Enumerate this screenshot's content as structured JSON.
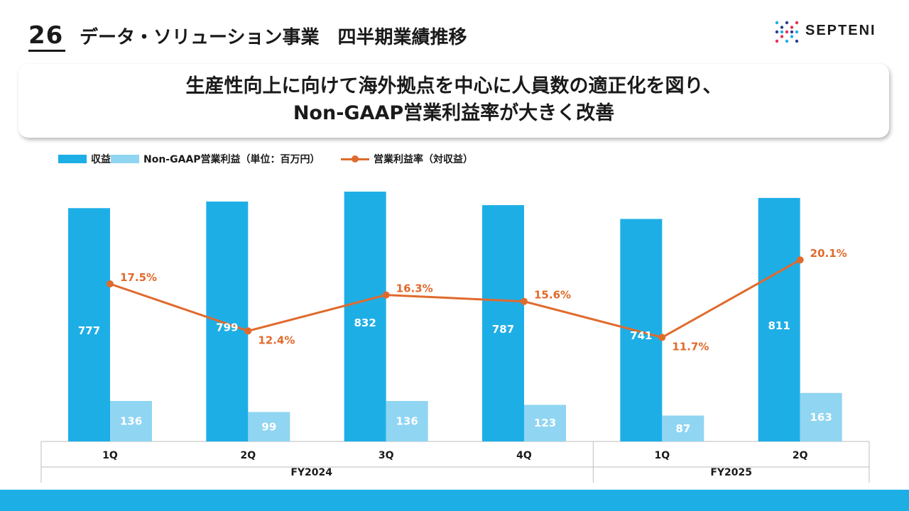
{
  "header": {
    "page_number": "26",
    "title": "データ・ソリューション事業　四半期業績推移",
    "logo_text": "SEPTENI"
  },
  "message": {
    "line1": "生産性向上に向けて海外拠点を中心に人員数の適正化を図り、",
    "line2": "Non-GAAP営業利益率が大きく改善"
  },
  "legend": {
    "revenue": "収益",
    "op_income": "Non-GAAP営業利益（単位：百万円）",
    "margin": "営業利益率（対収益）"
  },
  "colors": {
    "revenue": "#1eaee6",
    "op_income": "#90d5f2",
    "margin": "#e06a2c",
    "footer": "#1eaee6"
  },
  "chart_data": {
    "type": "bar",
    "categories": [
      "1Q",
      "2Q",
      "3Q",
      "4Q",
      "1Q",
      "2Q"
    ],
    "groups": [
      {
        "label": "FY2024",
        "span": 4
      },
      {
        "label": "FY2025",
        "span": 2
      }
    ],
    "series": [
      {
        "name": "収益",
        "type": "bar",
        "values": [
          777,
          799,
          832,
          787,
          741,
          811
        ]
      },
      {
        "name": "Non-GAAP営業利益（単位：百万円）",
        "type": "bar",
        "values": [
          136,
          99,
          136,
          123,
          87,
          163
        ]
      },
      {
        "name": "営業利益率（対収益）",
        "type": "line",
        "values": [
          17.5,
          12.4,
          16.3,
          15.6,
          11.7,
          20.1
        ],
        "labels": [
          "17.5%",
          "12.4%",
          "16.3%",
          "15.6%",
          "11.7%",
          "20.1%"
        ]
      }
    ],
    "ylim": [
      0,
      832
    ]
  }
}
